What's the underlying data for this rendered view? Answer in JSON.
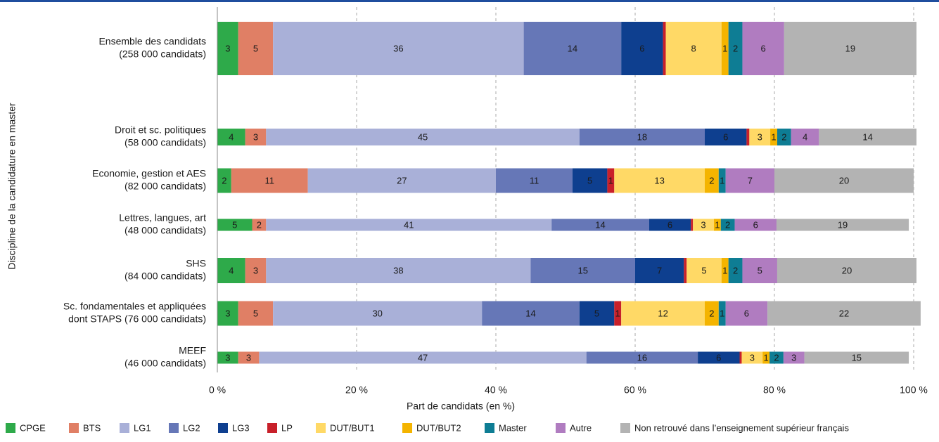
{
  "chart_data": {
    "type": "stacked_barh",
    "xlabel": "Part de candidats (en %)",
    "ylabel": "Discipline de la candidature en master",
    "categories": [
      [
        "Ensemble des candidats",
        "(258 000 candidats)"
      ],
      [
        "Droit et sc. politiques",
        "(58 000 candidats)"
      ],
      [
        "Economie, gestion et AES",
        "(82 000 candidats)"
      ],
      [
        "Lettres, langues, art",
        "(48 000 candidats)"
      ],
      [
        "SHS",
        "(84 000 candidats)"
      ],
      [
        "Sc. fondamentales et appliquées",
        "dont STAPS (76 000 candidats)"
      ],
      [
        "MEEF",
        "(46 000 candidats)"
      ]
    ],
    "xlim": [
      0,
      100
    ],
    "xticks": [
      {
        "value": 0,
        "label": "0 %"
      },
      {
        "value": 20,
        "label": "20 %"
      },
      {
        "value": 40,
        "label": "40 %"
      },
      {
        "value": 60,
        "label": "60 %"
      },
      {
        "value": 80,
        "label": "80 %"
      },
      {
        "value": 100,
        "label": "100 %"
      }
    ],
    "grid": true,
    "legend": "bottom",
    "series": [
      {
        "name": "CPGE",
        "color": "#2eaa4a",
        "values": [
          3,
          4,
          2,
          5,
          4,
          3,
          3
        ]
      },
      {
        "name": "BTS",
        "color": "#e07f65",
        "values": [
          5,
          3,
          11,
          2,
          3,
          5,
          3
        ]
      },
      {
        "name": "LG1",
        "color": "#a9b0d8",
        "values": [
          36,
          45,
          27,
          41,
          38,
          30,
          47
        ]
      },
      {
        "name": "LG2",
        "color": "#6677b7",
        "values": [
          14,
          18,
          11,
          14,
          15,
          14,
          16
        ]
      },
      {
        "name": "LG3",
        "color": "#0e3f8f",
        "values": [
          6,
          6,
          5,
          6,
          7,
          5,
          6
        ]
      },
      {
        "name": "LP",
        "color": "#c8202a",
        "values": [
          0.4,
          0.4,
          1,
          0.3,
          0.4,
          1,
          0.3
        ]
      },
      {
        "name": "DUT/BUT1",
        "color": "#ffd966",
        "values": [
          8,
          3,
          13,
          3,
          5,
          12,
          3
        ]
      },
      {
        "name": "DUT/BUT2",
        "color": "#f4b400",
        "values": [
          1,
          1,
          2,
          1,
          1,
          2,
          1
        ]
      },
      {
        "name": "Master",
        "color": "#0e7d94",
        "values": [
          2,
          2,
          1,
          2,
          2,
          1,
          2
        ]
      },
      {
        "name": "Autre",
        "color": "#b07cc0",
        "values": [
          6,
          4,
          7,
          6,
          5,
          6,
          3
        ]
      },
      {
        "name": "Non retrouvé dans l’enseignement supérieur français",
        "color": "#b3b3b3",
        "values": [
          19,
          14,
          20,
          19,
          20,
          22,
          15
        ]
      }
    ]
  }
}
